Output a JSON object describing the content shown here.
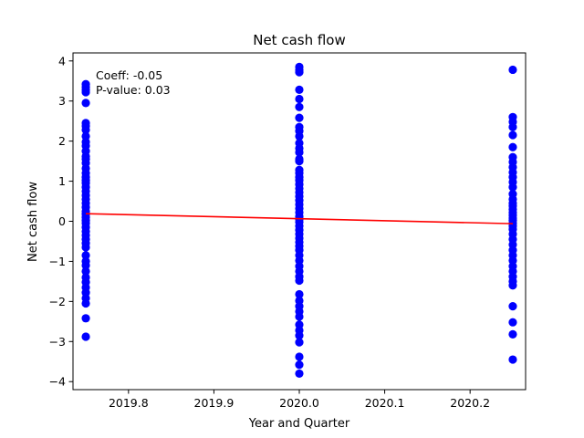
{
  "chart_data": {
    "type": "scatter",
    "title": "Net cash flow",
    "xlabel": "Year and Quarter",
    "ylabel": "Net cash flow",
    "xlim": [
      2019.735,
      2020.265
    ],
    "ylim": [
      -4.2,
      4.2
    ],
    "xticks": [
      2019.8,
      2019.9,
      2020.0,
      2020.1,
      2020.2
    ],
    "xtick_labels": [
      "2019.8",
      "2019.9",
      "2020.0",
      "2020.1",
      "2020.2"
    ],
    "yticks": [
      -4,
      -3,
      -2,
      -1,
      0,
      1,
      2,
      3,
      4
    ],
    "ytick_labels": [
      "−4",
      "−3",
      "−2",
      "−1",
      "0",
      "1",
      "2",
      "3",
      "4"
    ],
    "grid": false,
    "colors": {
      "points": "#0000ff",
      "fit_line": "#ff0000",
      "axes": "#000000"
    },
    "annotations": [
      "Coeff: -0.05",
      "P-value: 0.03"
    ],
    "series": [
      {
        "name": "observations",
        "x": 2019.75,
        "values": [
          3.42,
          3.35,
          3.28,
          3.22,
          2.95,
          2.45,
          2.38,
          2.28,
          2.12,
          1.98,
          1.88,
          1.75,
          1.62,
          1.55,
          1.45,
          1.32,
          1.2,
          1.1,
          1.02,
          0.95,
          0.85,
          0.75,
          0.65,
          0.55,
          0.45,
          0.35,
          0.25,
          0.18,
          0.1,
          0.02,
          -0.05,
          -0.15,
          -0.25,
          -0.35,
          -0.45,
          -0.55,
          -0.65,
          -0.85,
          -1.0,
          -1.1,
          -1.25,
          -1.4,
          -1.52,
          -1.65,
          -1.78,
          -1.92,
          -2.05,
          -2.42,
          -2.88
        ]
      },
      {
        "name": "observations",
        "x": 2020.0,
        "values": [
          3.85,
          3.78,
          3.72,
          3.28,
          3.05,
          2.85,
          2.58,
          2.35,
          2.25,
          2.12,
          1.95,
          1.82,
          1.72,
          1.55,
          1.5,
          1.28,
          1.2,
          1.1,
          1.02,
          0.92,
          0.82,
          0.72,
          0.62,
          0.52,
          0.42,
          0.32,
          0.22,
          0.12,
          0.05,
          -0.02,
          -0.12,
          -0.22,
          -0.32,
          -0.42,
          -0.52,
          -0.62,
          -0.72,
          -0.85,
          -0.98,
          -1.12,
          -1.25,
          -1.38,
          -1.48,
          -1.82,
          -1.98,
          -2.12,
          -2.25,
          -2.38,
          -2.58,
          -2.72,
          -2.85,
          -3.02,
          -3.38,
          -3.58,
          -3.8
        ]
      },
      {
        "name": "observations",
        "x": 2020.25,
        "values": [
          3.78,
          2.6,
          2.48,
          2.35,
          2.15,
          1.85,
          1.6,
          1.48,
          1.35,
          1.22,
          1.1,
          0.98,
          0.85,
          0.68,
          0.55,
          0.45,
          0.38,
          0.3,
          0.22,
          0.15,
          0.08,
          0.02,
          -0.05,
          -0.12,
          -0.2,
          -0.32,
          -0.45,
          -0.58,
          -0.72,
          -0.85,
          -0.98,
          -1.12,
          -1.25,
          -1.38,
          -1.5,
          -1.6,
          -2.12,
          -2.52,
          -2.82,
          -3.45
        ]
      }
    ],
    "fit_line": {
      "x": [
        2019.75,
        2020.25
      ],
      "y": [
        0.19,
        -0.06
      ]
    }
  }
}
